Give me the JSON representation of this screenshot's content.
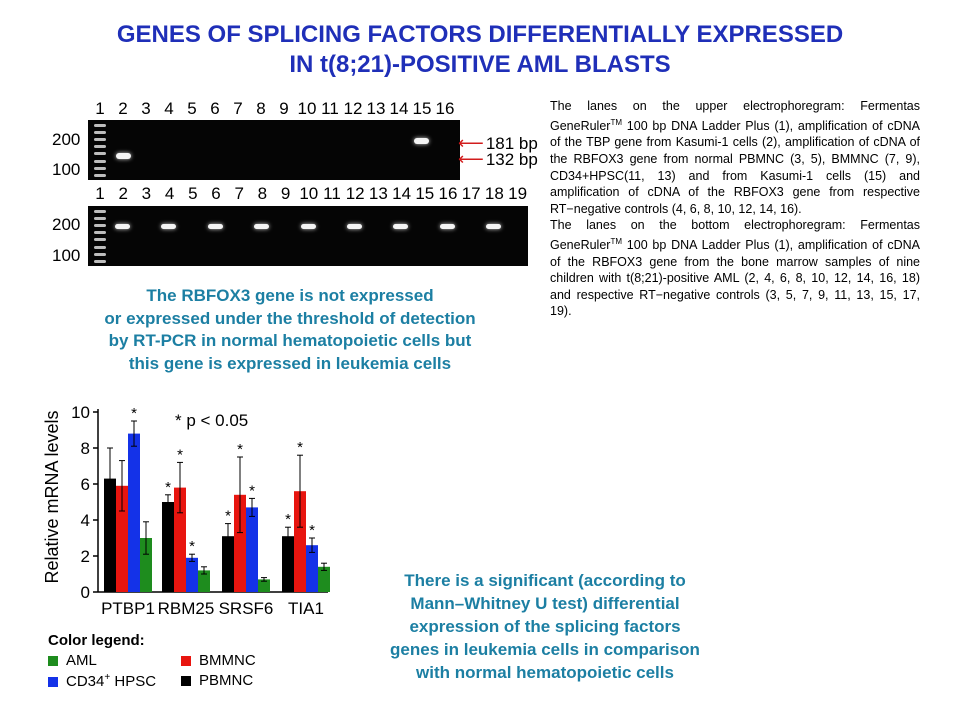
{
  "title": {
    "line1": "GENES OF SPLICING FACTORS DIFFERENTIALLY EXPRESSED",
    "line2": "IN t(8;21)-POSITIVE AML BLASTS"
  },
  "gel_top": {
    "lanes": [
      "1",
      "2",
      "3",
      "4",
      "5",
      "6",
      "7",
      "8",
      "9",
      "10",
      "11",
      "12",
      "13",
      "14",
      "15",
      "16"
    ],
    "ladder_labels": [
      "200",
      "100"
    ],
    "band_labels": [
      "181 bp",
      "132 bp"
    ]
  },
  "gel_bottom": {
    "lanes": [
      "1",
      "2",
      "3",
      "4",
      "5",
      "6",
      "7",
      "8",
      "9",
      "10",
      "11",
      "12",
      "13",
      "14",
      "15",
      "16",
      "17",
      "18",
      "19"
    ],
    "ladder_labels": [
      "200",
      "100"
    ]
  },
  "description": {
    "para1_prefix": "The lanes on the upper electrophoregram: Fermentas GeneRuler",
    "para1_tm": "TM",
    "para1_rest": " 100 bp DNA Ladder Plus (1), amplification of cDNA of the TBP gene from Kasumi-1 cells (2), amplification of cDNA of the RBFOX3 gene from normal PBMNC (3, 5), BMMNC (7, 9), CD34+HPSC(11, 13) and from Kasumi-1 cells (15) and amplification of cDNA of the RBFOX3 gene from respective RT−negative controls (4, 6, 8, 10, 12, 14, 16).",
    "para2_prefix": "The lanes on the bottom electrophoregram: Fermentas GeneRuler",
    "para2_tm": "TM",
    "para2_rest": " 100 bp DNA Ladder Plus (1), amplification of cDNA of the RBFOX3 gene from the bone marrow samples of nine children with t(8;21)-positive AML (2, 4, 6, 8, 10, 12, 14, 16, 18) and respective RT−negative controls (3, 5, 7, 9, 11, 13, 15, 17, 19)."
  },
  "note_rbfox3": {
    "line1": "The RBFOX3 gene is not expressed",
    "line2": "or expressed under the threshold of detection",
    "line3": "by RT-PCR in normal hematopoietic cells but",
    "line4": "this gene is expressed in leukemia cells"
  },
  "note_splicing": {
    "line1": "There is a significant (according to",
    "line2": "Mann–Whitney U test) differential",
    "line3": "expression of the splicing factors",
    "line4": "genes in leukemia cells in comparison",
    "line5": "with normal hematopoietic cells"
  },
  "chart_data": {
    "type": "bar",
    "categories": [
      "PTBP1",
      "RBM25",
      "SRSF6",
      "TIA1"
    ],
    "ylabel": "Relative mRNA levels",
    "ylim": [
      0,
      10
    ],
    "yticks": [
      "0",
      "2",
      "4",
      "6",
      "8",
      "10"
    ],
    "significance_note": "* p < 0.05",
    "series": [
      {
        "name": "PBMNC",
        "color": "#000000",
        "values": [
          6.3,
          5.0,
          3.1,
          3.1
        ],
        "errors": [
          1.7,
          0.4,
          0.7,
          0.5
        ],
        "stars": [
          false,
          true,
          true,
          true
        ]
      },
      {
        "name": "BMMNC",
        "color": "#e8150f",
        "values": [
          5.9,
          5.8,
          5.4,
          5.6
        ],
        "errors": [
          1.4,
          1.4,
          2.1,
          2.0
        ],
        "stars": [
          false,
          true,
          true,
          true
        ]
      },
      {
        "name": "CD34+ HPSC",
        "color": "#1432e8",
        "values": [
          8.8,
          1.9,
          4.7,
          2.6
        ],
        "errors": [
          0.7,
          0.2,
          0.5,
          0.4
        ],
        "stars": [
          true,
          true,
          true,
          true
        ]
      },
      {
        "name": "AML",
        "color": "#1e8c1e",
        "values": [
          3.0,
          1.2,
          0.7,
          1.4
        ],
        "errors": [
          0.9,
          0.2,
          0.1,
          0.2
        ],
        "stars": [
          false,
          false,
          false,
          false
        ]
      }
    ]
  },
  "legend": {
    "header": "Color legend:",
    "items": [
      {
        "label": "AML",
        "color": "#1e8c1e"
      },
      {
        "label": "BMMNC",
        "color": "#e8150f"
      },
      {
        "label_main": "CD34",
        "label_sup": "+",
        "label_rest": " HPSC",
        "color": "#1432e8"
      },
      {
        "label": "PBMNC",
        "color": "#000000"
      }
    ]
  }
}
